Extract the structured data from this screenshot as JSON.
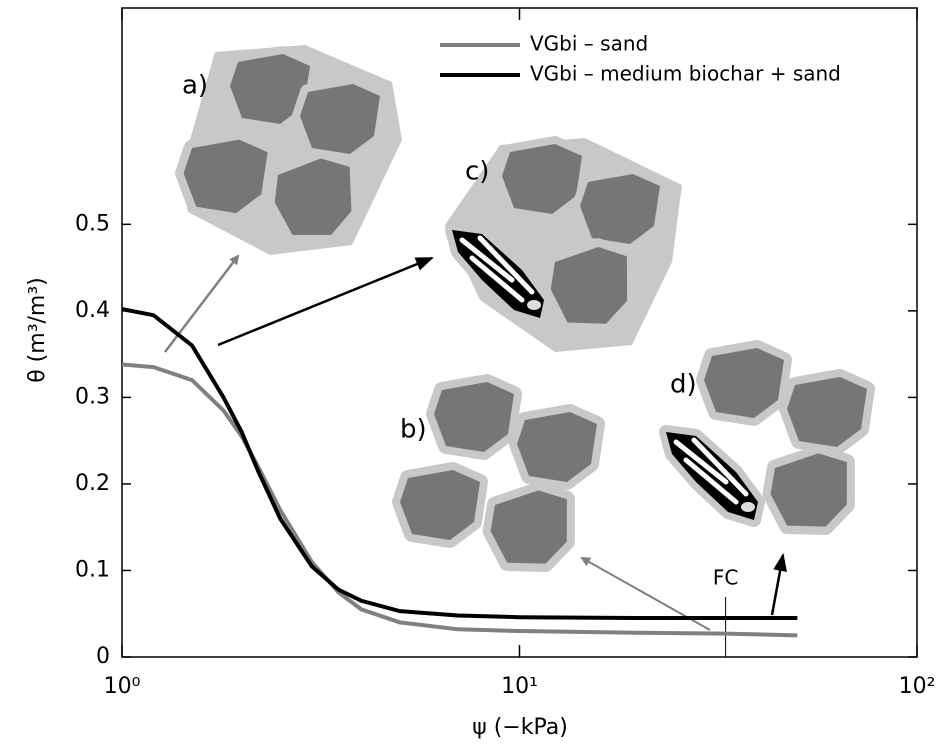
{
  "chart_data": {
    "type": "line",
    "x_label": "ψ (−kPa)",
    "y_label": "θ (m³/m³)",
    "x": [
      1,
      1.2,
      1.5,
      1.8,
      2,
      2.2,
      2.5,
      3,
      3.5,
      4,
      5,
      7,
      10,
      20,
      33,
      50
    ],
    "series": [
      {
        "name": "VGbi – sand",
        "color": "#808080",
        "values": [
          0.338,
          0.335,
          0.32,
          0.285,
          0.255,
          0.22,
          0.17,
          0.11,
          0.075,
          0.055,
          0.04,
          0.032,
          0.03,
          0.028,
          0.027,
          0.025
        ]
      },
      {
        "name": "VGbi – medium biochar + sand",
        "color": "#000000",
        "values": [
          0.402,
          0.395,
          0.36,
          0.3,
          0.26,
          0.215,
          0.16,
          0.105,
          0.078,
          0.065,
          0.053,
          0.048,
          0.046,
          0.045,
          0.045,
          0.045
        ]
      }
    ],
    "xlim": [
      1,
      100
    ],
    "x_log": true,
    "xticks": [
      {
        "value": 1,
        "label": "10⁰"
      },
      {
        "value": 10,
        "label": "10¹"
      },
      {
        "value": 100,
        "label": "10²"
      }
    ],
    "ylim": [
      0,
      0.75
    ],
    "yticks": [
      0,
      0.1,
      0.2,
      0.3,
      0.4,
      0.5
    ],
    "legend": "top",
    "fc": {
      "label": "FC",
      "x": 33
    },
    "annotations": [
      "a)",
      "b)",
      "c)",
      "d)"
    ]
  }
}
